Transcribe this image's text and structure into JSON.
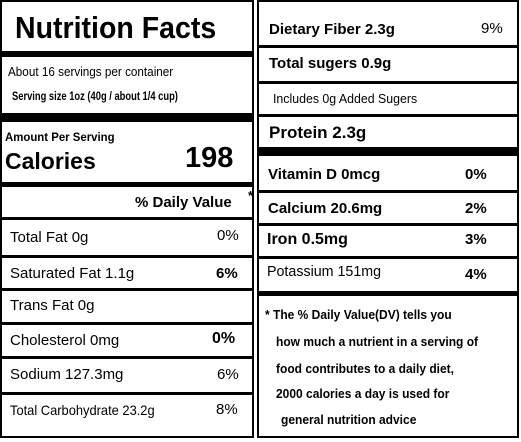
{
  "left": {
    "title": "Nutrition Facts",
    "servings_per_container": "About 16 servings per container",
    "serving_size": "Serving size 1oz (40g / about 1/4 cup)",
    "amount_per_serving": "Amount Per Serving",
    "calories_label": "Calories",
    "calories_value": "198",
    "daily_value_header": "% Daily Value",
    "daily_value_asterisk": "*",
    "rows": [
      {
        "label": "Total Fat  0g",
        "dv": "0%"
      },
      {
        "label": "Saturated Fat 1.1g",
        "dv": "6%"
      },
      {
        "label": "Trans Fat 0g",
        "dv": ""
      },
      {
        "label": "Cholesterol  0mg",
        "dv": "0%"
      },
      {
        "label": "Sodium  127.3mg",
        "dv": "6%"
      },
      {
        "label": "Total Carbohydrate 23.2g",
        "dv": "8%"
      }
    ]
  },
  "right": {
    "dietary_fiber": {
      "label": "Dietary Fiber  2.3g",
      "dv": "9%"
    },
    "total_sugars": {
      "label": "Total sugers  0.9g"
    },
    "added_sugars": {
      "label": "Includes 0g Added Sugers"
    },
    "protein": {
      "label": "Protein  2.3g"
    },
    "vitamins": [
      {
        "label": "Vitamin D 0mcg",
        "dv": "0%"
      },
      {
        "label": "Calcium  20.6mg",
        "dv": "2%"
      },
      {
        "label": "Iron 0.5mg",
        "dv": "3%"
      },
      {
        "label": "Potassium  151mg",
        "dv": "4%"
      }
    ],
    "footnote": [
      "* The % Daily Value(DV)  tells you",
      "how much a nutrient in a serving of",
      "food contributes to a daily diet,",
      "2000 calories a day is used for",
      "general nutrition advice"
    ]
  }
}
